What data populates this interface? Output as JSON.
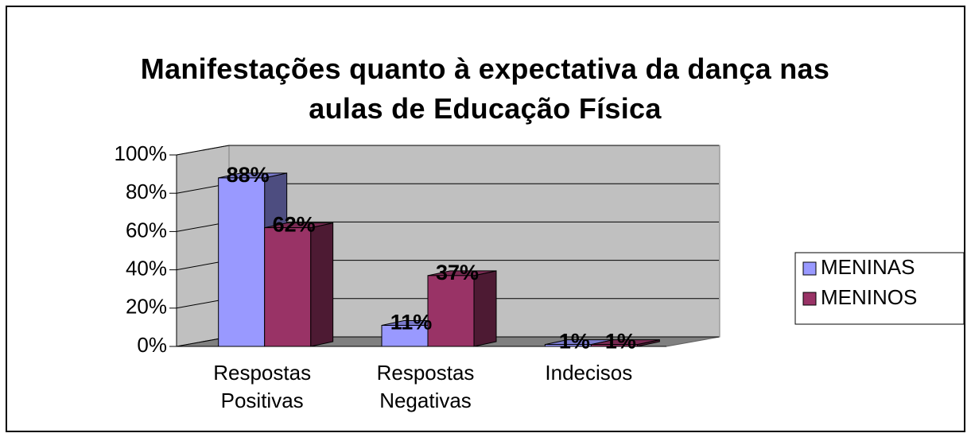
{
  "chart_data": {
    "type": "bar3d",
    "title": "Manifestações quanto à expectativa da dança nas aulas de Educação Física",
    "categories": [
      "Respostas Positivas",
      "Respostas Negativas",
      "Indecisos"
    ],
    "series": [
      {
        "name": "MENINAS",
        "color": "#9999ff",
        "values": [
          88,
          11,
          1
        ],
        "value_labels": [
          "88%",
          "11%",
          "1%"
        ]
      },
      {
        "name": "MENINOS",
        "color": "#993366",
        "values": [
          62,
          37,
          1
        ],
        "value_labels": [
          "62%",
          "37%",
          "1%"
        ]
      }
    ],
    "ylim": [
      0,
      100
    ],
    "yticks": [
      {
        "value": 0,
        "label": "0%"
      },
      {
        "value": 20,
        "label": "20%"
      },
      {
        "value": 40,
        "label": "40%"
      },
      {
        "value": 60,
        "label": "60%"
      },
      {
        "value": 80,
        "label": "80%"
      },
      {
        "value": 100,
        "label": "100%"
      }
    ],
    "grid": true,
    "legend": "right"
  }
}
